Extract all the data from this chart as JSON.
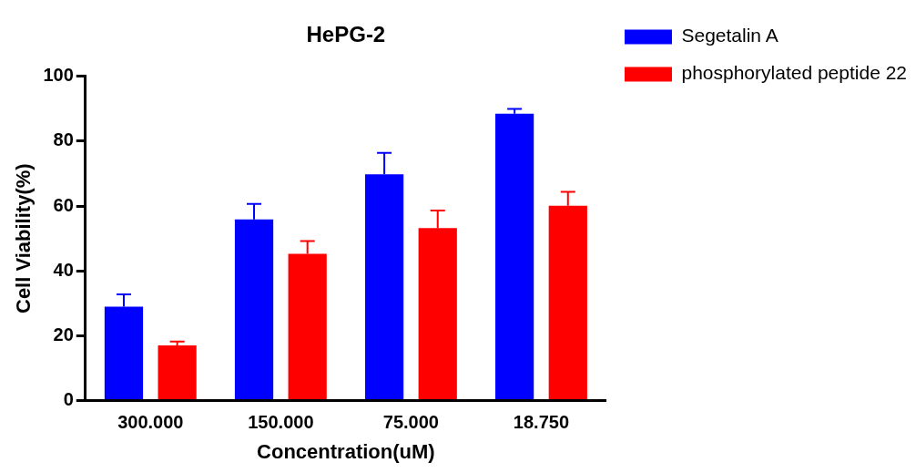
{
  "chart_data": {
    "type": "bar",
    "title": "HePG-2",
    "xlabel": "Concentration(uM)",
    "ylabel": "Cell Viability(%)",
    "categories": [
      "300.000",
      "150.000",
      "75.000",
      "18.750"
    ],
    "series": [
      {
        "name": "Segetalin A",
        "color": "#0000ff",
        "values": [
          29,
          55.9,
          69.8,
          88.5
        ],
        "errors": [
          3.8,
          4.8,
          6.6,
          1.5
        ]
      },
      {
        "name": "phosphorylated peptide 22",
        "color": "#ff0000",
        "values": [
          17,
          45.3,
          53.2,
          60.1
        ],
        "errors": [
          1.2,
          3.9,
          5.4,
          4.3
        ]
      }
    ],
    "ylim": [
      0,
      100
    ],
    "yticks": [
      0,
      20,
      40,
      60,
      80,
      100
    ],
    "grid": false,
    "legend": "top right"
  }
}
